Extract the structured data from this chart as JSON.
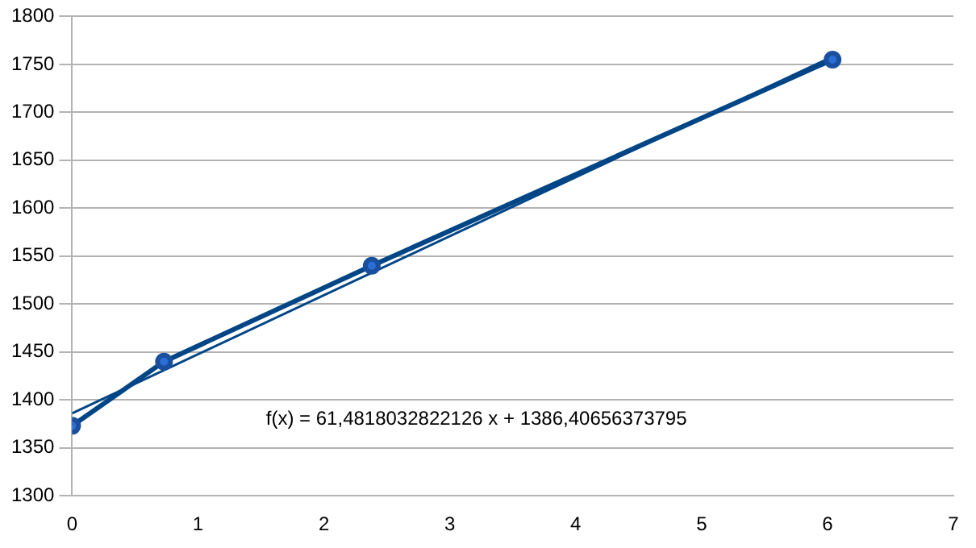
{
  "chart_data": {
    "type": "line",
    "xlim": [
      0,
      7
    ],
    "xticks": [
      0,
      1,
      2,
      3,
      4,
      5,
      6,
      7
    ],
    "ylim": [
      1300,
      1800
    ],
    "yticks": [
      1300,
      1350,
      1400,
      1450,
      1500,
      1550,
      1600,
      1650,
      1700,
      1750,
      1800
    ],
    "grid": "y",
    "legend": false,
    "marker": "circle",
    "series": [
      {
        "color": "#004586",
        "x": [
          0,
          0.73,
          2.38,
          6.04
        ],
        "values": [
          1373,
          1440,
          1540,
          1755
        ]
      },
      {
        "color": "#004586",
        "x": [
          0,
          6.04
        ],
        "values": [
          1386,
          1758
        ],
        "marker": "none"
      }
    ],
    "annotations": [
      "f(x) = 61,4818032822126 x + 1386,40656373795"
    ]
  }
}
